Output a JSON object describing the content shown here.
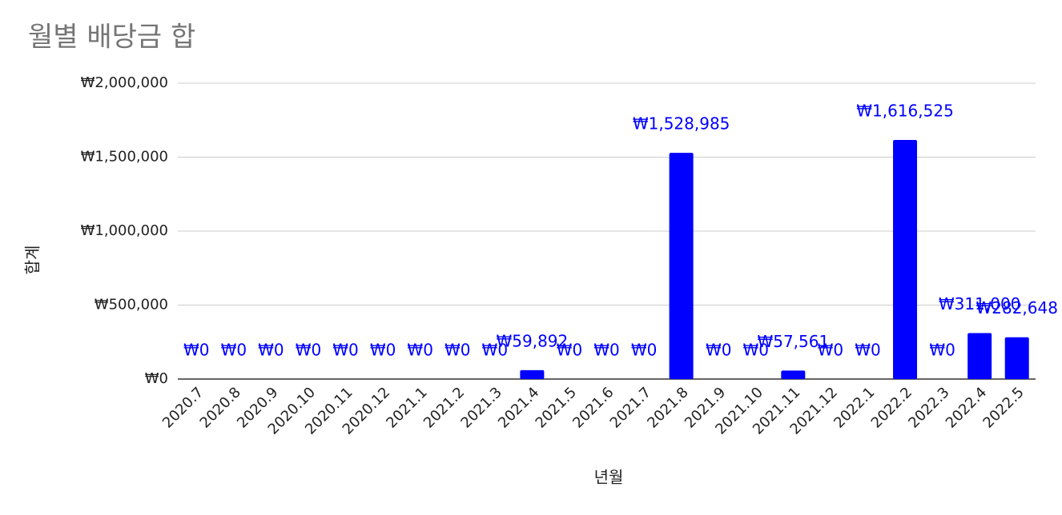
{
  "chart_data": {
    "type": "bar",
    "title": "월별 배당금 합",
    "x_label": "년월",
    "y_label": "합계",
    "categories": [
      "2020.7",
      "2020.8",
      "2020.9",
      "2020.10",
      "2020.11",
      "2020.12",
      "2021.1",
      "2021.2",
      "2021.3",
      "2021.4",
      "2021.5",
      "2021.6",
      "2021.7",
      "2021.8",
      "2021.9",
      "2021.10",
      "2021.11",
      "2021.12",
      "2022.1",
      "2022.2",
      "2022.3",
      "2022.4",
      "2022.5"
    ],
    "values": [
      0,
      0,
      0,
      0,
      0,
      0,
      0,
      0,
      0,
      59892,
      0,
      0,
      0,
      1528985,
      0,
      0,
      57561,
      0,
      0,
      1616525,
      0,
      311000,
      282648
    ],
    "value_labels": [
      "₩0",
      "₩0",
      "₩0",
      "₩0",
      "₩0",
      "₩0",
      "₩0",
      "₩0",
      "₩0",
      "₩59,892",
      "₩0",
      "₩0",
      "₩0",
      "₩1,528,985",
      "₩0",
      "₩0",
      "₩57,561",
      "₩0",
      "₩0",
      "₩1,616,525",
      "₩0",
      "₩311,000",
      "₩282,648"
    ],
    "color": "#0000ff",
    "ylim": [
      0,
      2000000
    ],
    "yticks": [
      {
        "value": 0,
        "label": "₩0"
      },
      {
        "value": 500000,
        "label": "₩500,000"
      },
      {
        "value": 1000000,
        "label": "₩1,000,000"
      },
      {
        "value": 1500000,
        "label": "₩1,500,000"
      },
      {
        "value": 2000000,
        "label": "₩2,000,000"
      }
    ],
    "grid": true
  }
}
